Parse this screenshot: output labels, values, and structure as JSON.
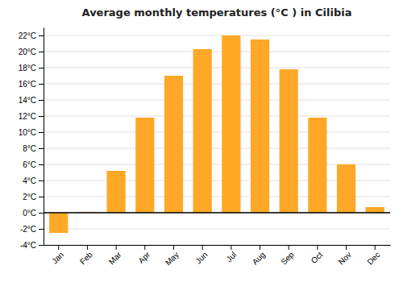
{
  "chart_data": {
    "type": "bar",
    "title": "Average monthly temperatures (°C ) in Cilibia",
    "categories": [
      "Jan",
      "Feb",
      "Mar",
      "Apr",
      "May",
      "Jun",
      "Jul",
      "Aug",
      "Sep",
      "Oct",
      "Nov",
      "Dec"
    ],
    "values": [
      -2.5,
      0.1,
      5.2,
      11.8,
      17.0,
      20.3,
      22.0,
      21.5,
      17.8,
      11.8,
      6.0,
      0.7
    ],
    "color": "#FFA726",
    "ylim": [
      -4,
      23
    ],
    "yticks": [
      {
        "value": -4,
        "label": "-4°C"
      },
      {
        "value": -2,
        "label": "-2°C"
      },
      {
        "value": 0,
        "label": "0°C"
      },
      {
        "value": 2,
        "label": "2°C"
      },
      {
        "value": 4,
        "label": "4°C"
      },
      {
        "value": 6,
        "label": "6°C"
      },
      {
        "value": 8,
        "label": "8°C"
      },
      {
        "value": 10,
        "label": "10°C"
      },
      {
        "value": 12,
        "label": "12°C"
      },
      {
        "value": 14,
        "label": "14°C"
      },
      {
        "value": 16,
        "label": "16°C"
      },
      {
        "value": 18,
        "label": "18°C"
      },
      {
        "value": 20,
        "label": "20°C"
      },
      {
        "value": 22,
        "label": "22°C"
      }
    ],
    "grid": true
  }
}
